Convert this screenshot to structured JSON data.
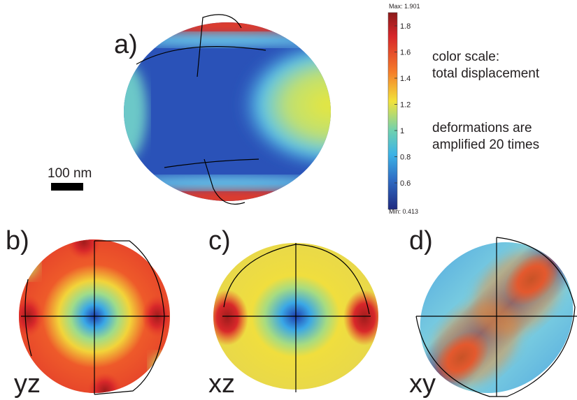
{
  "panels": [
    {
      "label": "a)"
    },
    {
      "label": "b)",
      "plane": "yz"
    },
    {
      "label": "c)",
      "plane": "xz"
    },
    {
      "label": "d)",
      "plane": "xy"
    }
  ],
  "scale_bar": "100 nm",
  "colorbar": {
    "max_label": "Max: 1.901",
    "min_label": "Min: 0.413",
    "ticks": [
      1.8,
      1.6,
      1.4,
      1.2,
      1,
      0.8,
      0.6
    ]
  },
  "notes": [
    "color scale:",
    "total displacement",
    "deformations are",
    "amplified 20 times"
  ]
}
